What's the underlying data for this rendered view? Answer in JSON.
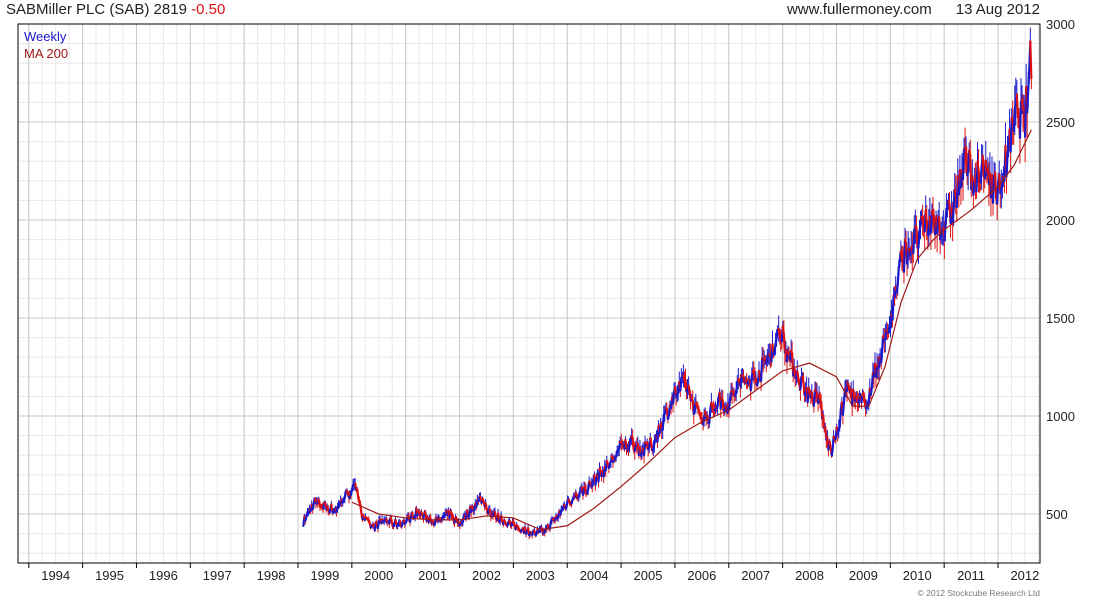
{
  "header": {
    "name": "SABMiller PLC (SAB)",
    "price": "2819",
    "change": "-0.50",
    "site": "www.fullermoney.com",
    "date": "13 Aug 2012"
  },
  "legend": {
    "weekly": "Weekly",
    "ma": "MA 200"
  },
  "footer": {
    "copyright": "© 2012 Stockcube Research Ltd"
  },
  "colors": {
    "up": "#1a1acc",
    "down": "#dd1111",
    "ma": "#a01818",
    "grid": "#c8c8c8",
    "minor_grid": "#e8e8e8",
    "axis": "#000000"
  },
  "chart_data": {
    "type": "line",
    "title": "SABMiller PLC (SAB) 2819 -0.50",
    "x_range": [
      1993.8,
      2012.78
    ],
    "ylim": [
      250,
      3000
    ],
    "y_ticks": [
      500,
      1000,
      1500,
      2000,
      2500,
      3000
    ],
    "x_tick_labels": [
      "1994",
      "1995",
      "1996",
      "1997",
      "1998",
      "1999",
      "2000",
      "2001",
      "2002",
      "2003",
      "2004",
      "2005",
      "2006",
      "2007",
      "2008",
      "2009",
      "2010",
      "2011",
      "2012"
    ],
    "grid": true,
    "legend_position": "top-left",
    "series": [
      {
        "name": "Weekly",
        "x": [
          1999.1,
          1999.3,
          1999.5,
          1999.7,
          1999.9,
          2000.1,
          2000.2,
          2000.4,
          2000.6,
          2000.8,
          2001.0,
          2001.2,
          2001.4,
          2001.6,
          2001.8,
          2002.0,
          2002.2,
          2002.4,
          2002.6,
          2002.8,
          2003.0,
          2003.2,
          2003.4,
          2003.6,
          2003.8,
          2004.0,
          2004.2,
          2004.4,
          2004.6,
          2004.8,
          2005.0,
          2005.2,
          2005.4,
          2005.6,
          2005.8,
          2006.0,
          2006.2,
          2006.4,
          2006.6,
          2006.8,
          2007.0,
          2007.2,
          2007.4,
          2007.6,
          2007.8,
          2008.0,
          2008.1,
          2008.3,
          2008.5,
          2008.7,
          2008.8,
          2008.9,
          2009.0,
          2009.2,
          2009.4,
          2009.6,
          2009.8,
          2010.0,
          2010.2,
          2010.3,
          2010.5,
          2010.7,
          2010.9,
          2011.0,
          2011.2,
          2011.4,
          2011.6,
          2011.8,
          2012.0,
          2012.2,
          2012.35,
          2012.5,
          2012.62
        ],
        "values": [
          460,
          560,
          540,
          520,
          600,
          640,
          480,
          430,
          470,
          450,
          460,
          510,
          480,
          460,
          500,
          450,
          520,
          580,
          500,
          470,
          440,
          420,
          400,
          420,
          480,
          560,
          600,
          640,
          700,
          760,
          840,
          870,
          820,
          860,
          990,
          1110,
          1170,
          1020,
          990,
          1080,
          1060,
          1170,
          1180,
          1230,
          1340,
          1440,
          1310,
          1200,
          1100,
          1080,
          900,
          820,
          900,
          1150,
          1050,
          1100,
          1300,
          1480,
          1780,
          1850,
          1900,
          1980,
          2000,
          1950,
          2100,
          2300,
          2200,
          2250,
          2130,
          2350,
          2550,
          2500,
          2850
        ]
      },
      {
        "name": "MA 200",
        "x": [
          2000.0,
          2000.5,
          2001.0,
          2001.5,
          2002.0,
          2002.5,
          2003.0,
          2003.5,
          2004.0,
          2004.5,
          2005.0,
          2005.5,
          2006.0,
          2006.5,
          2007.0,
          2007.5,
          2008.0,
          2008.5,
          2009.0,
          2009.3,
          2009.6,
          2009.9,
          2010.2,
          2010.5,
          2010.8,
          2011.0,
          2011.5,
          2012.0,
          2012.3,
          2012.62
        ],
        "values": [
          560,
          500,
          480,
          470,
          470,
          490,
          480,
          420,
          440,
          530,
          640,
          760,
          890,
          970,
          1030,
          1130,
          1230,
          1270,
          1200,
          1050,
          1050,
          1250,
          1580,
          1800,
          1900,
          1950,
          2050,
          2170,
          2280,
          2460
        ]
      }
    ]
  }
}
